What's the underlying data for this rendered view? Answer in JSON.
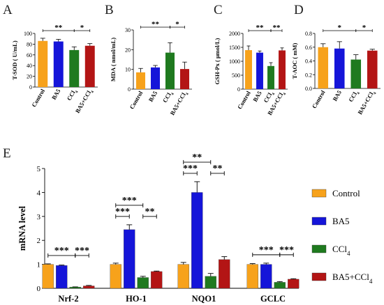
{
  "colors": {
    "Control": "#f7a21b",
    "BA5": "#1515d9",
    "CCl4": "#1f7a1f",
    "BA5+CCl4": "#b31515",
    "axis": "#000000",
    "errorbar": "#000000"
  },
  "chart_data": [
    {
      "panel": "A",
      "type": "bar",
      "categories": [
        "Control",
        "BA5",
        "CCl4",
        "BA5+CCl4"
      ],
      "values": [
        86,
        85,
        69,
        77
      ],
      "errors": [
        5,
        4,
        6,
        4
      ],
      "ylabel": "T-SOD ( U/mL)",
      "ylim": [
        0,
        100
      ],
      "yticks": [
        "0",
        "20",
        "40",
        "60",
        "80",
        "100"
      ],
      "significance": [
        {
          "from": 0,
          "to": 2,
          "label": "**"
        },
        {
          "from": 2,
          "to": 3,
          "label": "*"
        }
      ]
    },
    {
      "panel": "B",
      "type": "bar",
      "categories": [
        "Control",
        "BA5",
        "CCl4",
        "BA5+CCl4"
      ],
      "values": [
        8.5,
        11,
        18.5,
        10.2
      ],
      "errors": [
        2,
        1,
        5,
        3.5
      ],
      "ylabel": "MDA ( nmol/mL)",
      "ylim": [
        0,
        30
      ],
      "yticks": [
        "0",
        "10",
        "20",
        "30"
      ],
      "significance": [
        {
          "from": 0,
          "to": 2,
          "label": "**"
        },
        {
          "from": 2,
          "to": 3,
          "label": "*"
        }
      ]
    },
    {
      "panel": "C",
      "type": "bar",
      "categories": [
        "Control",
        "BA5",
        "CCl4",
        "BA5+CCl4"
      ],
      "values": [
        1400,
        1310,
        830,
        1390
      ],
      "errors": [
        150,
        60,
        120,
        90
      ],
      "ylabel": "GSH-Px ( μmol/L)",
      "ylim": [
        0,
        2000
      ],
      "yticks": [
        "0",
        "500",
        "1000",
        "1500",
        "2000"
      ],
      "significance": [
        {
          "from": 0,
          "to": 2,
          "label": "**"
        },
        {
          "from": 2,
          "to": 3,
          "label": "**"
        }
      ]
    },
    {
      "panel": "D",
      "type": "bar",
      "categories": [
        "Control",
        "BA5",
        "CCl4",
        "BA5+CCl4"
      ],
      "values": [
        0.6,
        0.58,
        0.42,
        0.55
      ],
      "errors": [
        0.05,
        0.1,
        0.07,
        0.02
      ],
      "ylabel": "T-AOC ( mM)",
      "ylim": [
        0,
        0.8
      ],
      "yticks": [
        "0.0",
        "0.2",
        "0.4",
        "0.6",
        "0.8"
      ],
      "significance": [
        {
          "from": 0,
          "to": 2,
          "label": "*"
        },
        {
          "from": 2,
          "to": 3,
          "label": "*"
        }
      ]
    },
    {
      "panel": "E",
      "type": "bar",
      "categories": [
        "Nrf-2",
        "HO-1",
        "NQO1",
        "GCLC"
      ],
      "ylabel": "mRNA level",
      "ylim": [
        0,
        5
      ],
      "yticks": [
        "0",
        "1",
        "2",
        "3",
        "4",
        "5"
      ],
      "series": [
        {
          "name": "Control",
          "key": "Control",
          "values": [
            1.0,
            1.0,
            1.0,
            1.0
          ],
          "errors": [
            0.02,
            0.05,
            0.08,
            0.03
          ]
        },
        {
          "name": "BA5",
          "key": "BA5",
          "values": [
            0.95,
            2.45,
            4.0,
            1.0
          ],
          "errors": [
            0.02,
            0.2,
            0.45,
            0.05
          ]
        },
        {
          "name": "CCl4",
          "key": "CCl4",
          "values": [
            0.05,
            0.45,
            0.5,
            0.25
          ],
          "errors": [
            0.01,
            0.05,
            0.12,
            0.03
          ]
        },
        {
          "name": "BA5+CCl4",
          "key": "BA5+CCl4",
          "values": [
            0.1,
            0.7,
            1.2,
            0.38
          ],
          "errors": [
            0.02,
            0.02,
            0.12,
            0.02
          ]
        }
      ],
      "significance": [
        {
          "group": 0,
          "from": 0,
          "to": 2,
          "label": "***",
          "level": 0
        },
        {
          "group": 0,
          "from": 2,
          "to": 3,
          "label": "***",
          "level": 0
        },
        {
          "group": 1,
          "from": 0,
          "to": 1,
          "label": "***",
          "level": 0
        },
        {
          "group": 1,
          "from": 0,
          "to": 2,
          "label": "***",
          "level": 1
        },
        {
          "group": 1,
          "from": 2,
          "to": 3,
          "label": "**",
          "level": 0
        },
        {
          "group": 2,
          "from": 0,
          "to": 1,
          "label": "***",
          "level": 0
        },
        {
          "group": 2,
          "from": 0,
          "to": 2,
          "label": "**",
          "level": 1
        },
        {
          "group": 2,
          "from": 2,
          "to": 3,
          "label": "**",
          "level": 0
        },
        {
          "group": 3,
          "from": 0,
          "to": 2,
          "label": "***",
          "level": 0
        },
        {
          "group": 3,
          "from": 2,
          "to": 3,
          "label": "***",
          "level": 0
        }
      ]
    }
  ],
  "legend": [
    {
      "key": "Control",
      "label": "Control",
      "sub": ""
    },
    {
      "key": "BA5",
      "label": "BA5",
      "sub": ""
    },
    {
      "key": "CCl4",
      "label": "CCl",
      "sub": "4"
    },
    {
      "key": "BA5+CCl4",
      "label": "BA5+CCl",
      "sub": "4"
    }
  ]
}
